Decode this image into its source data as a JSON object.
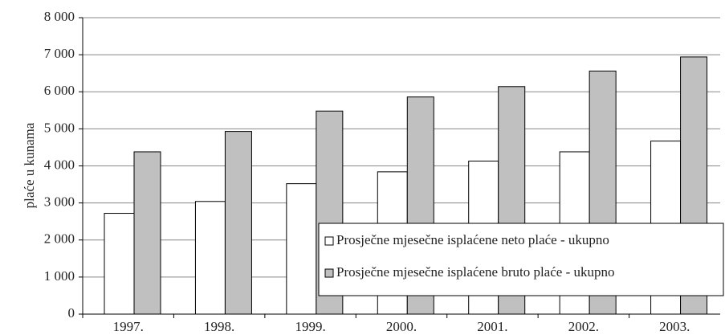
{
  "chart_data": {
    "type": "bar",
    "y_label": "plaće u kunama",
    "categories": [
      "1997.",
      "1998.",
      "1999.",
      "2000.",
      "2001.",
      "2002.",
      "2003."
    ],
    "series": [
      {
        "name": "Prosječne mjesečne isplaćene neto plaće - ukupno",
        "color": "#ffffff",
        "values": [
          2720,
          3040,
          3520,
          3840,
          4130,
          4380,
          4670
        ]
      },
      {
        "name": "Prosječne mjesečne isplaćene bruto plaće - ukupno",
        "color": "#c0c0c0",
        "values": [
          4380,
          4930,
          5480,
          5860,
          6140,
          6560,
          6940
        ]
      }
    ],
    "ylim": [
      0,
      8000
    ],
    "yticks": [
      0,
      {
        "value": 1000,
        "label": "1 000"
      },
      {
        "value": 2000,
        "label": "2 000"
      },
      {
        "value": 3000,
        "label": "3 000"
      },
      {
        "value": 4000,
        "label": "4 000"
      },
      {
        "value": 5000,
        "label": "5 000"
      },
      {
        "value": 6000,
        "label": "6 000"
      },
      {
        "value": 7000,
        "label": "7 000"
      },
      {
        "value": 8000,
        "label": "8 000"
      }
    ],
    "grid": true,
    "legend": "bottom-right"
  }
}
